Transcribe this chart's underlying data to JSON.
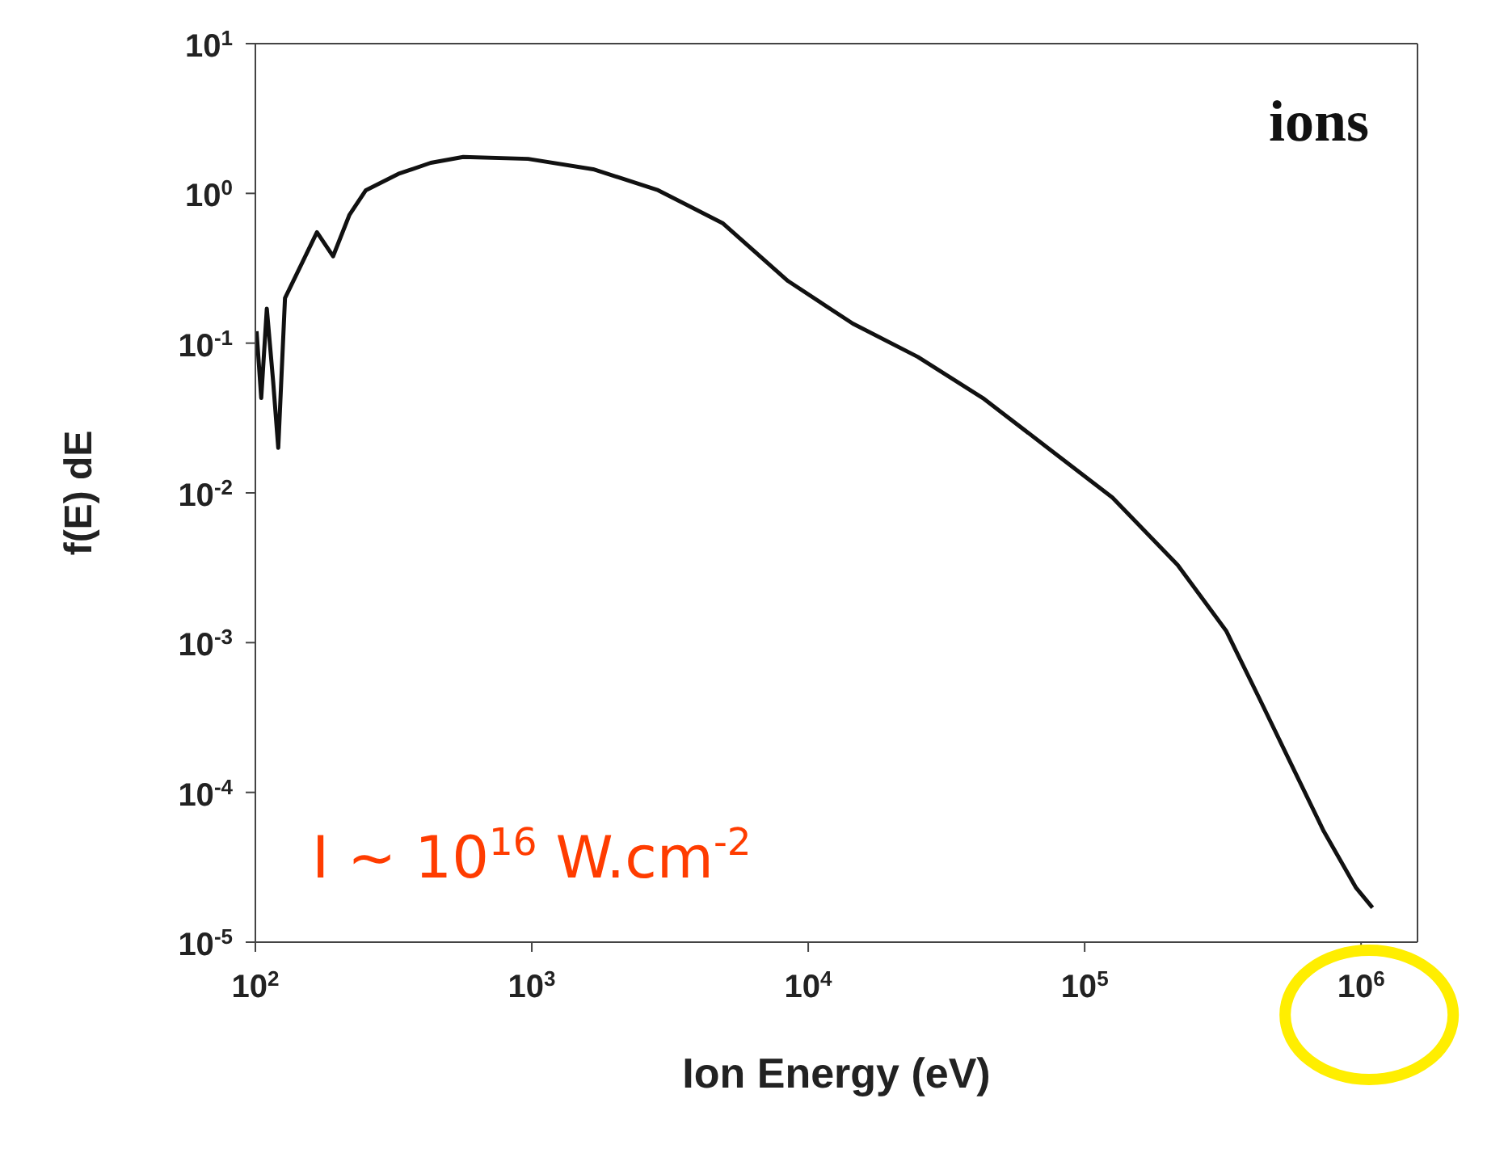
{
  "chart_data": {
    "type": "line",
    "xlabel": "Ion Energy (eV)",
    "ylabel": "f(E) dE",
    "log": "xy",
    "grid": false,
    "legend": false,
    "marker": "none",
    "line_style": "solid",
    "xlim": [
      100,
      1600000
    ],
    "ylim": [
      1e-05,
      10
    ],
    "xticks": [
      {
        "value": 100,
        "label": "10$^{2}$"
      },
      {
        "value": 1000,
        "label": "10$^{3}$"
      },
      {
        "value": 10000,
        "label": "10$^{4}$"
      },
      {
        "value": 100000,
        "label": "10$^{5}$"
      },
      {
        "value": 1000000,
        "label": "10$^{6}$"
      }
    ],
    "yticks": [
      {
        "value": 1e-05,
        "label": "10$^{-5}$"
      },
      {
        "value": 0.0001,
        "label": "10$^{-4}$"
      },
      {
        "value": 0.001,
        "label": "10$^{-3}$"
      },
      {
        "value": 0.01,
        "label": "10$^{-2}$"
      },
      {
        "value": 0.1,
        "label": "10$^{-1}$"
      },
      {
        "value": 1,
        "label": "10$^{0}$"
      },
      {
        "value": 10,
        "label": "10$^{1}$"
      }
    ],
    "annotations": [
      "ions",
      "I ~ 10$^{16}$ W.cm$^{-2}$"
    ],
    "series": [
      {
        "color": "#111111",
        "x": [
          101,
          105,
          110,
          116,
          121,
          128,
          146,
          167,
          191,
          219,
          251,
          329,
          431,
          565,
          970,
          1667,
          2864,
          4920,
          8450,
          14500,
          24900,
          42800,
          73500,
          126000,
          217000,
          325000,
          427000,
          558000,
          733000,
          960000,
          1100000
        ],
        "values": [
          0.12,
          0.043,
          0.17,
          0.055,
          0.02,
          0.2,
          0.33,
          0.55,
          0.38,
          0.72,
          1.05,
          1.35,
          1.6,
          1.75,
          1.7,
          1.45,
          1.05,
          0.63,
          0.26,
          0.135,
          0.081,
          0.043,
          0.02,
          0.0093,
          0.0033,
          0.0012,
          0.00043,
          0.000155,
          5.5e-05,
          2.3e-05,
          1.7e-05
        ]
      }
    ]
  }
}
